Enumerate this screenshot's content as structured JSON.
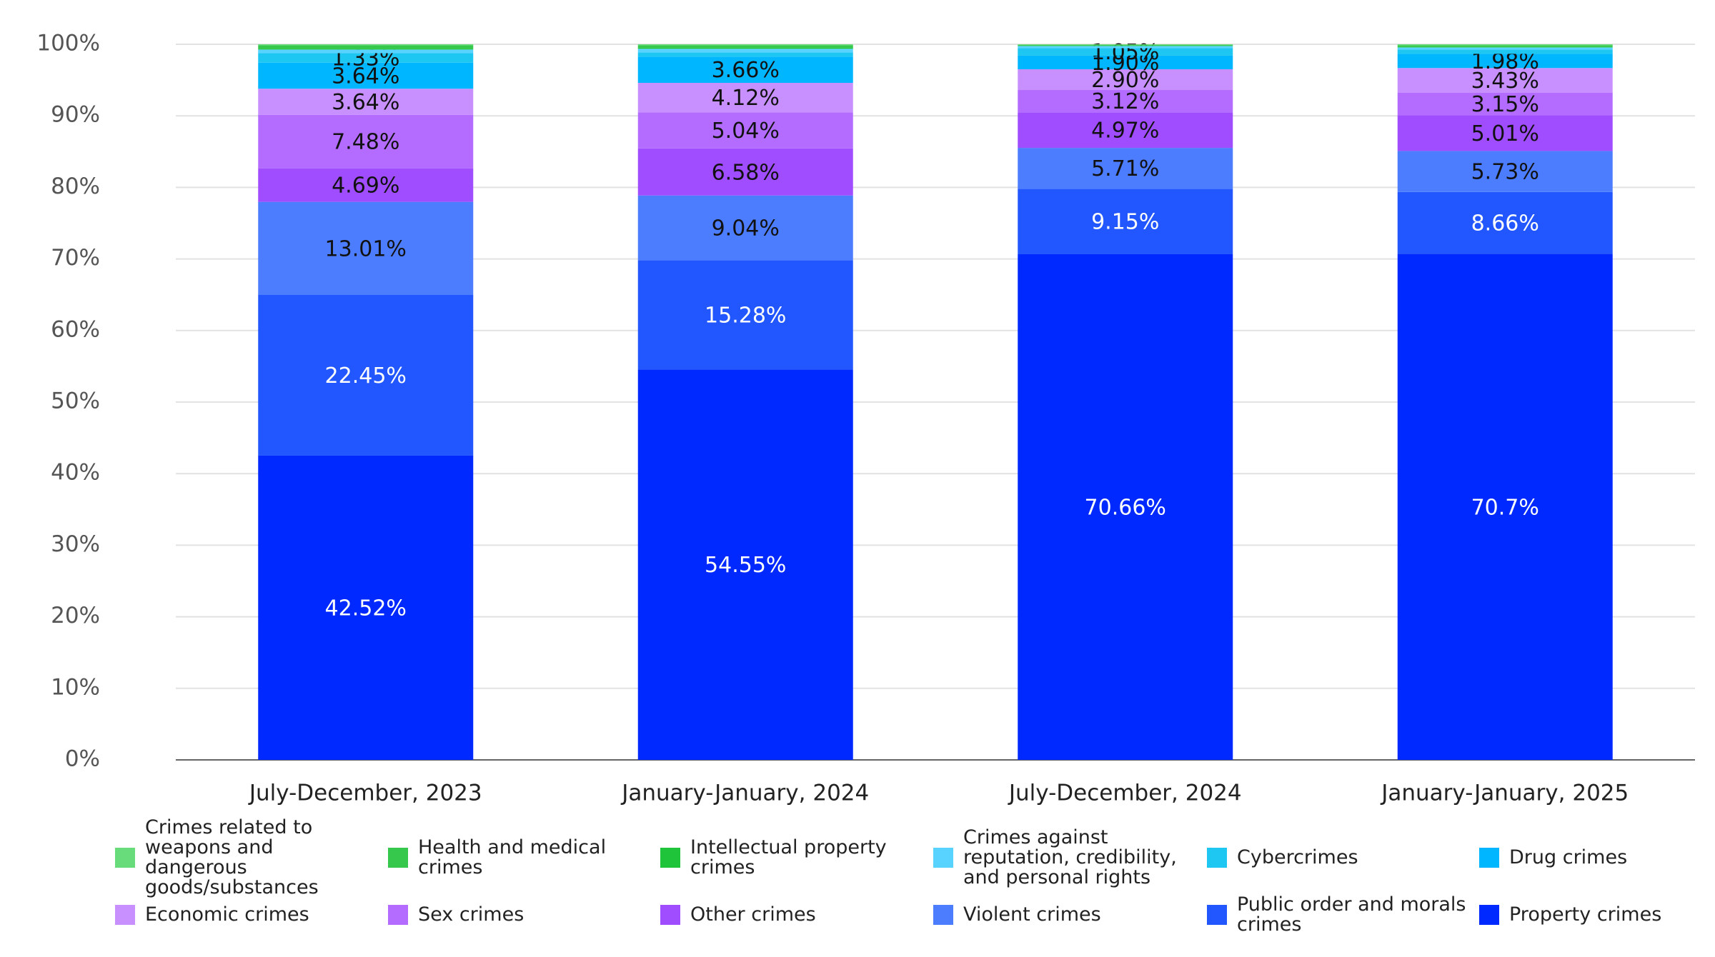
{
  "chart_data": {
    "type": "stacked_bar",
    "categories": [
      "July-December, 2023",
      "January-January, 2024",
      "July-December, 2024",
      "January-January, 2025"
    ],
    "ylim": [
      0,
      100
    ],
    "yticks": [
      {
        "value": 0,
        "label": "0%"
      },
      {
        "value": 10,
        "label": "10%"
      },
      {
        "value": 20,
        "label": "20%"
      },
      {
        "value": 30,
        "label": "30%"
      },
      {
        "value": 40,
        "label": "40%"
      },
      {
        "value": 50,
        "label": "50%"
      },
      {
        "value": 60,
        "label": "60%"
      },
      {
        "value": 70,
        "label": "70%"
      },
      {
        "value": 80,
        "label": "80%"
      },
      {
        "value": 90,
        "label": "90%"
      },
      {
        "value": 100,
        "label": "100%"
      }
    ],
    "grid": true,
    "series": [
      {
        "name": "Property crimes",
        "color": "#0029ff",
        "label_color": "#ffffff",
        "values": [
          42.52,
          54.55,
          70.66,
          70.7
        ],
        "value_labels": [
          "42.52%",
          "54.55%",
          "70.66%",
          "70.7%"
        ]
      },
      {
        "name": "Public order and morals crimes",
        "color": "#2257ff",
        "label_color": "#ffffff",
        "values": [
          22.45,
          15.28,
          9.15,
          8.66
        ],
        "value_labels": [
          "22.45%",
          "15.28%",
          "9.15%",
          "8.66%"
        ]
      },
      {
        "name": "Violent crimes",
        "color": "#4d7dff",
        "label_color": "#111111",
        "values": [
          13.01,
          9.04,
          5.71,
          5.73
        ],
        "value_labels": [
          "13.01%",
          "9.04%",
          "5.71%",
          "5.73%"
        ]
      },
      {
        "name": "Other crimes",
        "color": "#a04cff",
        "label_color": "#111111",
        "values": [
          4.69,
          6.58,
          4.97,
          5.01
        ],
        "value_labels": [
          "4.69%",
          "6.58%",
          "4.97%",
          "5.01%"
        ]
      },
      {
        "name": "Sex crimes",
        "color": "#b36cff",
        "label_color": "#111111",
        "values": [
          7.48,
          5.04,
          3.12,
          3.15
        ],
        "value_labels": [
          "7.48%",
          "5.04%",
          "3.12%",
          "3.15%"
        ]
      },
      {
        "name": "Economic crimes",
        "color": "#c890ff",
        "label_color": "#111111",
        "values": [
          3.64,
          4.12,
          2.9,
          3.43
        ],
        "value_labels": [
          "3.64%",
          "4.12%",
          "2.90%",
          "3.43%"
        ]
      },
      {
        "name": "Drug crimes",
        "color": "#00b6ff",
        "label_color": "#111111",
        "values": [
          3.64,
          3.66,
          1.9,
          1.98
        ],
        "value_labels": [
          "3.64%",
          "3.66%",
          "1.90%",
          "1.98%"
        ]
      },
      {
        "name": "Cybercrimes",
        "color": "#1ec6f2",
        "label_color": "#111111",
        "values": [
          1.33,
          0.6,
          1.05,
          0.6
        ],
        "value_labels": [
          "1.33%",
          null,
          "1.05%",
          null
        ]
      },
      {
        "name": "Crimes against reputation, credibility, and personal rights",
        "color": "#58d2ff",
        "label_color": "#111111",
        "values": [
          0.5,
          0.5,
          0.3,
          0.3
        ]
      },
      {
        "name": "Intellectual property crimes",
        "color": "#1fc43a",
        "label_color": "#111111",
        "values": [
          0.1,
          0.2,
          0.05,
          0.1
        ]
      },
      {
        "name": "Health and medical crimes",
        "color": "#36c84c",
        "label_color": "#111111",
        "values": [
          0.5,
          0.3,
          0.1,
          0.2
        ]
      },
      {
        "name": "Crimes related to weapons and dangerous goods/substances",
        "color": "#68dc7a",
        "label_color": "#111111",
        "values": [
          0.14,
          0.13,
          0.09,
          0.14
        ]
      }
    ]
  }
}
